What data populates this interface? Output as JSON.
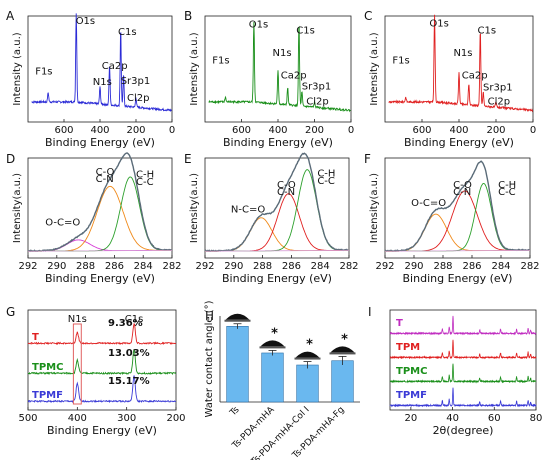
{
  "chart_data": [
    {
      "panel": "A",
      "type": "line",
      "color": "#2b2bd6",
      "xlabel": "Binding Energy (eV)",
      "ylabel": "Intensity (a.u.)",
      "xlim": [
        800,
        0
      ],
      "xticks": [
        "600",
        "400",
        "200",
        "0"
      ],
      "peaks": [
        {
          "x": 532,
          "y": 0.95
        },
        {
          "x": 400,
          "y": 0.18
        },
        {
          "x": 347,
          "y": 0.42
        },
        {
          "x": 285,
          "y": 0.82
        },
        {
          "x": 269,
          "y": 0.33
        },
        {
          "x": 200,
          "y": 0.1
        },
        {
          "x": 688,
          "y": 0.1
        }
      ],
      "labels": [
        {
          "text": "O1s",
          "x": 535,
          "y": 0.98
        },
        {
          "text": "C1s",
          "x": 300,
          "y": 0.86
        },
        {
          "text": "Ca2p",
          "x": 390,
          "y": 0.5
        },
        {
          "text": "N1s",
          "x": 440,
          "y": 0.33
        },
        {
          "text": "Sr3p1",
          "x": 285,
          "y": 0.34
        },
        {
          "text": "Cl2p",
          "x": 250,
          "y": 0.16
        },
        {
          "text": "F1s",
          "x": 760,
          "y": 0.44
        }
      ]
    },
    {
      "panel": "B",
      "type": "line",
      "color": "#1a8f1a",
      "xlabel": "Binding Energy (eV)",
      "ylabel": "Intensity (a.u.)",
      "xlim": [
        800,
        0
      ],
      "xticks": [
        "600",
        "400",
        "200",
        "0"
      ],
      "peaks": [
        {
          "x": 532,
          "y": 0.84
        },
        {
          "x": 400,
          "y": 0.35
        },
        {
          "x": 347,
          "y": 0.18
        },
        {
          "x": 285,
          "y": 0.88
        },
        {
          "x": 269,
          "y": 0.15
        },
        {
          "x": 200,
          "y": 0.05
        },
        {
          "x": 688,
          "y": 0.05
        }
      ],
      "labels": [
        {
          "text": "O1s",
          "x": 560,
          "y": 0.94
        },
        {
          "text": "C1s",
          "x": 300,
          "y": 0.88
        },
        {
          "text": "N1s",
          "x": 430,
          "y": 0.64
        },
        {
          "text": "F1s",
          "x": 760,
          "y": 0.56
        },
        {
          "text": "Ca2p",
          "x": 385,
          "y": 0.4
        },
        {
          "text": "Sr3p1",
          "x": 270,
          "y": 0.28
        },
        {
          "text": "Cl2p",
          "x": 245,
          "y": 0.12
        }
      ]
    },
    {
      "panel": "C",
      "type": "line",
      "color": "#e02020",
      "xlabel": "Binding Energy (eV)",
      "ylabel": "Intensity (a.u.)",
      "xlim": [
        800,
        0
      ],
      "xticks": [
        "600",
        "400",
        "200",
        "0"
      ],
      "peaks": [
        {
          "x": 532,
          "y": 0.92
        },
        {
          "x": 400,
          "y": 0.33
        },
        {
          "x": 347,
          "y": 0.22
        },
        {
          "x": 285,
          "y": 0.8
        },
        {
          "x": 269,
          "y": 0.15
        },
        {
          "x": 200,
          "y": 0.05
        },
        {
          "x": 688,
          "y": 0.05
        }
      ],
      "labels": [
        {
          "text": "O1s",
          "x": 560,
          "y": 0.95
        },
        {
          "text": "C1s",
          "x": 300,
          "y": 0.88
        },
        {
          "text": "N1s",
          "x": 430,
          "y": 0.64
        },
        {
          "text": "F1s",
          "x": 760,
          "y": 0.56
        },
        {
          "text": "Ca2p",
          "x": 385,
          "y": 0.4
        },
        {
          "text": "Sr3p1",
          "x": 270,
          "y": 0.27
        },
        {
          "text": "Cl2p",
          "x": 245,
          "y": 0.12
        }
      ]
    },
    {
      "panel": "D",
      "type": "line",
      "xlabel": "Binding Energy (eV)",
      "ylabel": "Intensity(a.u.)",
      "xlim": [
        292,
        282
      ],
      "xticks": [
        "292",
        "290",
        "288",
        "286",
        "284",
        "282"
      ],
      "components": [
        {
          "name": "O-C=O",
          "center": 288.5,
          "height": 0.12,
          "width": 0.8,
          "color": "#d63cd6"
        },
        {
          "name": "C-O C-N",
          "center": 286.3,
          "height": 0.7,
          "width": 0.9,
          "color": "#f08a1a"
        },
        {
          "name": "C-H C-C",
          "center": 284.9,
          "height": 0.8,
          "width": 0.65,
          "color": "#2ca02c"
        }
      ],
      "envelope_color": "#5a6b78",
      "labels": [
        {
          "text": "C-O",
          "x": 287.3,
          "y": 0.86
        },
        {
          "text": "C-N",
          "x": 287.3,
          "y": 0.78
        },
        {
          "text": "C-H",
          "x": 284.5,
          "y": 0.83
        },
        {
          "text": "C-C",
          "x": 284.5,
          "y": 0.75
        },
        {
          "text": "O-C=O",
          "x": 290.8,
          "y": 0.31
        }
      ]
    },
    {
      "panel": "E",
      "type": "line",
      "xlabel": "Binding Energy (eV)",
      "ylabel": "Intensity(a.u.)",
      "xlim": [
        292,
        282
      ],
      "xticks": [
        "292",
        "290",
        "288",
        "286",
        "284",
        "282"
      ],
      "components": [
        {
          "name": "N-C=O",
          "center": 288.1,
          "height": 0.36,
          "width": 0.75,
          "color": "#f08a1a"
        },
        {
          "name": "C-O C-N",
          "center": 286.2,
          "height": 0.62,
          "width": 0.75,
          "color": "#e02020"
        },
        {
          "name": "C-H C-C",
          "center": 284.9,
          "height": 0.88,
          "width": 0.65,
          "color": "#2ca02c"
        }
      ],
      "envelope_color": "#5a6b78",
      "labels": [
        {
          "text": "C-O",
          "x": 287.0,
          "y": 0.72
        },
        {
          "text": "C-N",
          "x": 287.0,
          "y": 0.64
        },
        {
          "text": "C-H",
          "x": 284.2,
          "y": 0.84
        },
        {
          "text": "C-C",
          "x": 284.2,
          "y": 0.76
        },
        {
          "text": "N-C=O",
          "x": 290.2,
          "y": 0.45
        }
      ]
    },
    {
      "panel": "F",
      "type": "line",
      "xlabel": "Binding Energy (eV)",
      "ylabel": "Intensity(a.u.)",
      "xlim": [
        292,
        282
      ],
      "xticks": [
        "292",
        "290",
        "288",
        "286",
        "284",
        "282"
      ],
      "components": [
        {
          "name": "O-C=O",
          "center": 288.5,
          "height": 0.4,
          "width": 0.75,
          "color": "#f08a1a"
        },
        {
          "name": "C-O C-N",
          "center": 286.5,
          "height": 0.65,
          "width": 0.85,
          "color": "#e02020"
        },
        {
          "name": "C-H C-C",
          "center": 285.2,
          "height": 0.73,
          "width": 0.55,
          "color": "#2ca02c"
        }
      ],
      "envelope_color": "#5a6b78",
      "labels": [
        {
          "text": "C-O",
          "x": 287.3,
          "y": 0.72
        },
        {
          "text": "C-N",
          "x": 287.3,
          "y": 0.64
        },
        {
          "text": "C-H",
          "x": 284.2,
          "y": 0.72
        },
        {
          "text": "C-C",
          "x": 284.2,
          "y": 0.64
        },
        {
          "text": "O-C=O",
          "x": 290.2,
          "y": 0.52
        }
      ]
    },
    {
      "panel": "G",
      "type": "line",
      "xlabel": "Binding Energy (eV)",
      "xlim": [
        500,
        200
      ],
      "xticks": [
        "500",
        "400",
        "300",
        "200"
      ],
      "series": [
        {
          "name": "T",
          "color": "#e02020",
          "n1s_percent": "9.36%",
          "n1s": 0.18,
          "c1s": 0.28
        },
        {
          "name": "TPMC",
          "color": "#1a8f1a",
          "n1s_percent": "13.03%",
          "n1s": 0.22,
          "c1s": 0.34
        },
        {
          "name": "TPMF",
          "color": "#3a3ad6",
          "n1s_percent": "15.17%",
          "n1s": 0.3,
          "c1s": 0.36
        }
      ],
      "peak_labels": [
        "N1s",
        "C1s"
      ],
      "highlight_box_color": "#e06060"
    },
    {
      "panel": "H",
      "type": "bar",
      "ylabel": "Water contact angle (°)",
      "ylim": [
        0,
        100
      ],
      "categories": [
        "Ts",
        "Ts-PDA-mHA",
        "Ts-PDA-mHA-Col I",
        "Ts-PDA-mHA-Fg"
      ],
      "values": [
        88,
        57,
        43,
        48
      ],
      "errors": [
        3,
        3,
        4,
        5
      ],
      "significant": [
        false,
        true,
        true,
        true
      ],
      "star": "*",
      "bar_color": "#6ab8ef"
    },
    {
      "panel": "I",
      "type": "line",
      "xlabel": "2θ(degree)",
      "xlim": [
        10,
        80
      ],
      "xticks": [
        "20",
        "40",
        "60",
        "80"
      ],
      "series": [
        {
          "name": "T",
          "color": "#c02cc0"
        },
        {
          "name": "TPM",
          "color": "#e02020"
        },
        {
          "name": "TPMC",
          "color": "#1a8f1a"
        },
        {
          "name": "TPMF",
          "color": "#3a3ad6"
        }
      ],
      "peaks_2theta": [
        35.1,
        38.4,
        40.2,
        53.0,
        63.0,
        70.7,
        76.2,
        77.4
      ],
      "peak_heights": [
        0.25,
        0.35,
        1.0,
        0.2,
        0.25,
        0.25,
        0.3,
        0.2
      ]
    }
  ]
}
